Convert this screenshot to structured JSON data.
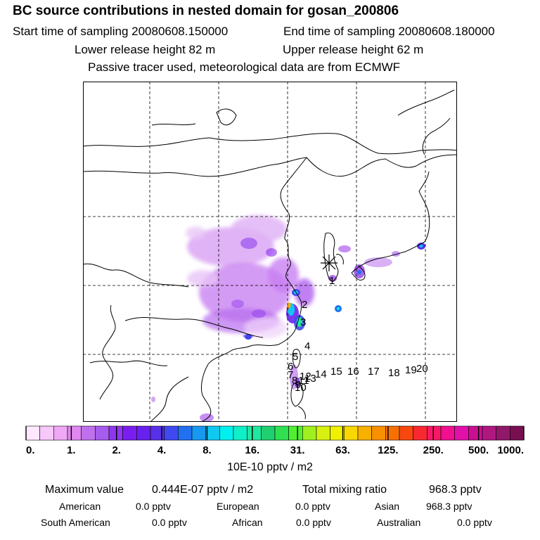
{
  "header": {
    "title": "BC  source contributions in nested domain for gosan_200806",
    "start": "Start time of sampling 20080608.150000",
    "end": "End time of sampling 20080608.180000",
    "lower": "Lower release height   82 m",
    "upper": "Upper release height   62 m",
    "tracer": "Passive tracer used, meteorological data are from ECMWF"
  },
  "map": {
    "station_marker": "asterisk",
    "trajectory_labels": [
      "1",
      "2",
      "3",
      "4",
      "5",
      "6",
      "7",
      "8",
      "9",
      "10",
      "11",
      "12",
      "13",
      "14",
      "15",
      "16",
      "17",
      "18",
      "19",
      "20"
    ]
  },
  "colorbar": {
    "colors": [
      "#ffe8ff",
      "#f7c8fa",
      "#eea8f5",
      "#e088f0",
      "#c070ec",
      "#a65cec",
      "#8e36f0",
      "#7a1ef0",
      "#6820ec",
      "#5830e8",
      "#4048f0",
      "#2070f0",
      "#1898f0",
      "#10c8f0",
      "#00f0f0",
      "#10f0c8",
      "#20e8a0",
      "#20d070",
      "#30e050",
      "#50f030",
      "#a0f020",
      "#d8f010",
      "#f0f000",
      "#f8d800",
      "#f8b000",
      "#f89000",
      "#f87000",
      "#f84810",
      "#f82830",
      "#f81868",
      "#f01090",
      "#e010a8",
      "#c81090",
      "#b01880",
      "#901868",
      "#781050"
    ],
    "ticks": [
      "0.",
      "1.",
      "2.",
      "4.",
      "8.",
      "16.",
      "31.",
      "63.",
      "125.",
      "250.",
      "500.",
      "1000."
    ],
    "unit": "10E-10 pptv / m2"
  },
  "summary": {
    "max_label": "Maximum value",
    "max_value": "0.444E-07 pptv / m2",
    "total_label": "Total mixing ratio",
    "total_value": "968.3 pptv",
    "american_label": "American",
    "american_value": "0.0 pptv",
    "european_label": "European",
    "european_value": "0.0 pptv",
    "asian_label": "Asian",
    "asian_value": "968.3 pptv",
    "south_american_label": "South American",
    "south_american_value": "0.0 pptv",
    "african_label": "African",
    "african_value": "0.0 pptv",
    "australian_label": "Australian",
    "australian_value": "0.0 pptv"
  }
}
